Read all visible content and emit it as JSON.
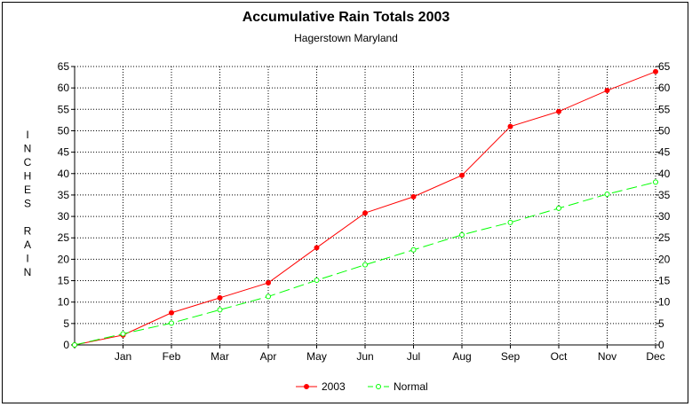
{
  "chart_data": {
    "type": "line",
    "title": "Accumulative Rain Totals 2003",
    "subtitle": "Hagerstown Maryland",
    "ylabel": "INCHES RAIN",
    "xlabel": "",
    "categories": [
      "",
      "Jan",
      "Feb",
      "Mar",
      "Apr",
      "May",
      "Jun",
      "Jul",
      "Aug",
      "Sep",
      "Oct",
      "Nov",
      "Dec"
    ],
    "ylim": [
      0,
      65
    ],
    "yticks": [
      0,
      5,
      10,
      15,
      20,
      25,
      30,
      35,
      40,
      45,
      50,
      55,
      60,
      65
    ],
    "grid": true,
    "legend_position": "bottom",
    "series": [
      {
        "name": "2003",
        "color": "#ff0000",
        "line_style": "solid",
        "values": [
          0,
          2.3,
          7.5,
          11.0,
          14.5,
          22.7,
          30.8,
          34.6,
          39.6,
          51.0,
          54.5,
          59.4,
          63.8
        ]
      },
      {
        "name": "Normal",
        "color": "#00ff00",
        "line_style": "dashed",
        "values": [
          0,
          2.6,
          5.1,
          8.2,
          11.3,
          15.1,
          18.7,
          22.2,
          25.7,
          28.6,
          31.9,
          35.2,
          38.0
        ]
      }
    ]
  }
}
